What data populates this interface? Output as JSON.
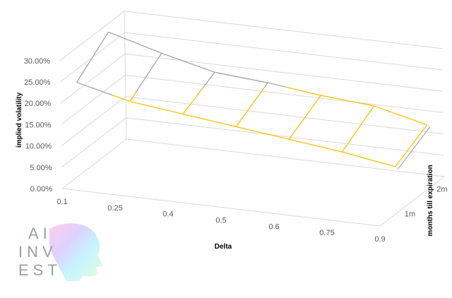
{
  "chart_data": {
    "type": "3d-surface-wireframe",
    "xlabel": "Delta",
    "ylabel": "months till expiration",
    "zlabel": "implied volatility",
    "x": [
      0.1,
      0.25,
      0.4,
      0.5,
      0.6,
      0.75,
      0.9
    ],
    "x_tick_labels": [
      "0.1",
      "0.25",
      "0.4",
      "0.5",
      "0.6",
      "0.75",
      "0.9"
    ],
    "y_tick_labels": [
      "1m",
      "2m"
    ],
    "z_tick_labels": [
      "0.00%",
      "5.00%",
      "10.00%",
      "15.00%",
      "20.00%",
      "25.00%",
      "30.00%"
    ],
    "zlim": [
      0,
      30
    ],
    "series": [
      {
        "name": "1m",
        "values": [
          22.0,
          19.0,
          17.5,
          16.0,
          14.5,
          13.0,
          11.0
        ]
      },
      {
        "name": "2m",
        "values": [
          28.0,
          24.5,
          21.5,
          20.5,
          19.0,
          18.0,
          15.0
        ]
      }
    ],
    "band_colors": [
      "#4472C4",
      "#FFC000",
      "#A5A5A5"
    ],
    "grid": true
  },
  "watermark": {
    "lines": [
      "AI",
      "INV",
      "EST"
    ]
  }
}
